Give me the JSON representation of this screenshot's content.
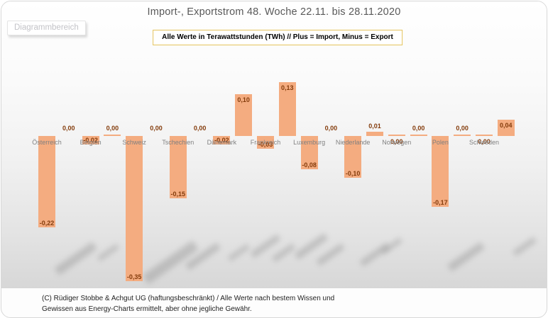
{
  "tooltip": {
    "text": "Diagrammbereich"
  },
  "chart_data": {
    "type": "bar",
    "title": "Import-, Exportstrom 48. Woche 22.11. bis 28.11.2020",
    "subtitle": "Alle Werte in Terawattstunden (TWh) // Plus = Import, Minus = Export",
    "unit": "TWh",
    "grid": false,
    "legend": "none",
    "ylim": [
      -0.4,
      0.2
    ],
    "categories": [
      "Österreich",
      "Belgien",
      "Schweiz",
      "Tschechien",
      "Dänemark",
      "Frankreich",
      "Luxemburg",
      "Niederlande",
      "Norwegen",
      "Polen",
      "Schweden"
    ],
    "series": [
      {
        "name": "series_1",
        "values": [
          -0.22,
          -0.02,
          -0.35,
          -0.15,
          -0.02,
          -0.03,
          -0.08,
          -0.1,
          0.0,
          -0.17,
          0.0
        ],
        "labels": [
          "-0,22",
          "-0,02",
          "-0,35",
          "-0,15",
          "-0,02",
          "-0,03",
          "-0,08",
          "-0,10",
          "0,00",
          "-0,17",
          "0,00"
        ]
      },
      {
        "name": "series_2",
        "values": [
          0.0,
          0.0,
          0.0,
          0.0,
          0.1,
          0.13,
          0.0,
          0.01,
          0.0,
          0.0,
          0.04
        ],
        "labels": [
          "0,00",
          "0,00",
          "0,00",
          "0,00",
          "0,10",
          "0,13",
          "0,00",
          "0,01",
          "0,00",
          "0,00",
          "0,04"
        ]
      }
    ],
    "zero_tick_indices": {
      "series_1": [
        8,
        10
      ],
      "series_2": [
        1,
        8,
        9
      ]
    }
  },
  "footer": {
    "line1": "(C) Rüdiger Stobbe & Achgut UG (haftungsbeschränkt) / Alle Werte nach bestem Wissen und",
    "line2": "Gewissen aus Energy-Charts ermittelt, aber ohne jegliche Gewähr."
  },
  "colors": {
    "bar_fill": "#F4AC80",
    "value_label": "#843C0C",
    "category_label": "#7F7F7F",
    "title_text": "#595959",
    "subtitle_border": "#E5C35C",
    "tooltip_text": "#C3C3C7"
  }
}
